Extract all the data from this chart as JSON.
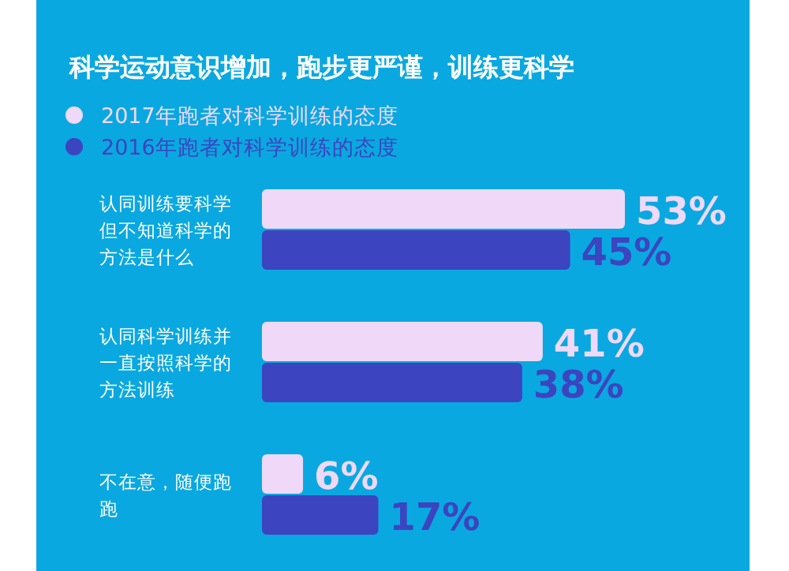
{
  "chart_data": {
    "type": "bar",
    "orientation": "horizontal",
    "title": "科学运动意识增加，跑步更严谨，训练更科学",
    "categories": [
      "认同训练要科学但不知道科学的方法是什么",
      "认同科学训练并一直按照科学的方法训练",
      "不在意，随便跑跑"
    ],
    "series": [
      {
        "name": "2017年跑者对科学训练的态度",
        "color": "#f0d8f8",
        "values": [
          53,
          41,
          6
        ],
        "value_labels": [
          "53%",
          "41%",
          "6%"
        ]
      },
      {
        "name": "2016年跑者对科学训练的态度",
        "color": "#3c44c0",
        "values": [
          45,
          38,
          17
        ],
        "value_labels": [
          "45%",
          "38%",
          "17%"
        ]
      }
    ],
    "legend": "top left"
  }
}
